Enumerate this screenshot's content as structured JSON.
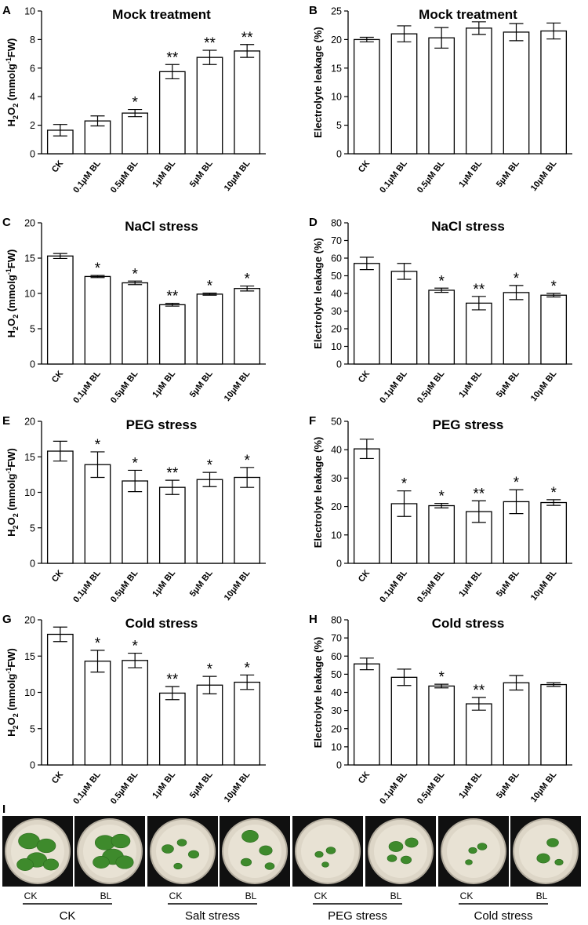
{
  "categories": [
    "CK",
    "0.1μM BL",
    "0.5μM BL",
    "1μM BL",
    "5μM BL",
    "10μM BL"
  ],
  "chart_data": [
    {
      "panel": "A",
      "type": "bar",
      "title": "Mock treatment",
      "ylabel_parts": {
        "base": "H",
        "sub": "2",
        "mid": "O",
        "sub2": "2",
        "rest1": " (mmolg",
        "sup": "-1",
        "rest2": "FW)"
      },
      "ylim": [
        0,
        10
      ],
      "yticks": [
        0,
        2,
        4,
        6,
        8,
        10
      ],
      "values": [
        1.65,
        2.3,
        2.85,
        5.75,
        6.75,
        7.2
      ],
      "errors": [
        0.4,
        0.35,
        0.25,
        0.5,
        0.5,
        0.45
      ],
      "significance": [
        "",
        "",
        "*",
        "**",
        "**",
        "**"
      ]
    },
    {
      "panel": "B",
      "type": "bar",
      "title": "Mock treatment",
      "ylabel": "Electrolyte leakage (%)",
      "ylim": [
        0,
        25
      ],
      "yticks": [
        0,
        5,
        10,
        15,
        20,
        25
      ],
      "values": [
        20.0,
        21.0,
        20.3,
        22.0,
        21.3,
        21.5
      ],
      "errors": [
        0.4,
        1.4,
        1.8,
        1.1,
        1.5,
        1.4
      ],
      "significance": [
        "",
        "",
        "",
        "",
        "",
        ""
      ]
    },
    {
      "panel": "C",
      "type": "bar",
      "title": "NaCl stress",
      "ylabel_parts": {
        "base": "H",
        "sub": "2",
        "mid": "O",
        "sub2": "2",
        "rest1": " (mmolg",
        "sup": "-1",
        "rest2": "FW)"
      },
      "ylim": [
        0,
        20
      ],
      "yticks": [
        0,
        5,
        10,
        15,
        20
      ],
      "values": [
        15.3,
        12.4,
        11.5,
        8.4,
        9.9,
        10.7
      ],
      "errors": [
        0.35,
        0.15,
        0.25,
        0.2,
        0.15,
        0.35
      ],
      "significance": [
        "",
        "*",
        "*",
        "**",
        "*",
        "*"
      ]
    },
    {
      "panel": "D",
      "type": "bar",
      "title": "NaCl stress",
      "ylabel": "Electrolyte leakage (%)",
      "ylim": [
        0,
        80
      ],
      "yticks": [
        0,
        10,
        20,
        30,
        40,
        50,
        60,
        70,
        80
      ],
      "values": [
        57,
        52.5,
        41.8,
        34.5,
        40.5,
        39
      ],
      "errors": [
        3.5,
        4.5,
        1.2,
        3.8,
        4.0,
        1.0
      ],
      "significance": [
        "",
        "",
        "*",
        "**",
        "*",
        "*"
      ]
    },
    {
      "panel": "E",
      "type": "bar",
      "title": "PEG stress",
      "ylabel_parts": {
        "base": "H",
        "sub": "2",
        "mid": "O",
        "sub2": "2",
        "rest1": " (mmolg",
        "sup": "-1",
        "rest2": "FW)"
      },
      "ylim": [
        0,
        20
      ],
      "yticks": [
        0,
        5,
        10,
        15,
        20
      ],
      "values": [
        15.8,
        13.9,
        11.6,
        10.7,
        11.8,
        12.1
      ],
      "errors": [
        1.4,
        1.8,
        1.5,
        1.0,
        1.0,
        1.4
      ],
      "significance": [
        "",
        "*",
        "*",
        "**",
        "*",
        "*"
      ]
    },
    {
      "panel": "F",
      "type": "bar",
      "title": "PEG stress",
      "ylabel": "Electrolyte leakage (%)",
      "ylim": [
        0,
        50
      ],
      "yticks": [
        0,
        10,
        20,
        30,
        40,
        50
      ],
      "values": [
        40.3,
        21.0,
        20.3,
        18.2,
        21.7,
        21.4
      ],
      "errors": [
        3.4,
        4.5,
        0.8,
        3.8,
        4.2,
        1.0
      ],
      "significance": [
        "",
        "*",
        "*",
        "**",
        "*",
        "*"
      ]
    },
    {
      "panel": "G",
      "type": "bar",
      "title": "Cold stress",
      "ylabel_parts": {
        "base": "H",
        "sub": "2",
        "mid": "O",
        "sub2": "2",
        "rest1": " (mmolg",
        "sup": "-1",
        "rest2": "FW)"
      },
      "ylim": [
        0,
        20
      ],
      "yticks": [
        0,
        5,
        10,
        15,
        20
      ],
      "values": [
        18.0,
        14.3,
        14.4,
        9.9,
        11.0,
        11.4
      ],
      "errors": [
        1.0,
        1.5,
        1.0,
        0.9,
        1.2,
        1.0
      ],
      "significance": [
        "",
        "*",
        "*",
        "**",
        "*",
        "*"
      ]
    },
    {
      "panel": "H",
      "type": "bar",
      "title": "Cold stress",
      "ylabel": "Electrolyte leakage (%)",
      "ylim": [
        0,
        80
      ],
      "yticks": [
        0,
        10,
        20,
        30,
        40,
        50,
        60,
        70,
        80
      ],
      "values": [
        55.7,
        48.3,
        43.5,
        33.7,
        45.3,
        44.3
      ],
      "errors": [
        3.2,
        4.5,
        1.0,
        3.5,
        4.0,
        1.0
      ],
      "significance": [
        "",
        "",
        "*",
        "**",
        "",
        ""
      ]
    }
  ],
  "photo_panel": {
    "label": "I",
    "pair_labels": [
      "CK",
      "BL"
    ],
    "groups": [
      "CK",
      "Salt stress",
      "PEG stress",
      "Cold stress"
    ]
  }
}
